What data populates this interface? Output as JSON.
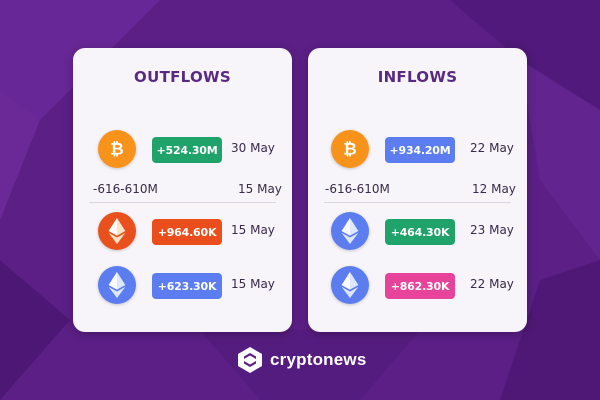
{
  "outflows": {
    "title": "OUTFLOWS",
    "rows": [
      {
        "coin": "btc",
        "icon": "bitcoin-icon",
        "amount": "+524.30M",
        "date": "30 May",
        "color": "#1fa36a"
      },
      {
        "plain": true,
        "amount": "-616-610M",
        "date": "15 May"
      },
      {
        "coin": "eth-orange",
        "icon": "ethereum-icon",
        "amount": "+964.60K",
        "date": "15 May",
        "color": "#ea4e1c"
      },
      {
        "coin": "eth-blue",
        "icon": "ethereum-icon",
        "amount": "+623.30K",
        "date": "15 May",
        "color": "#5b7df0"
      }
    ]
  },
  "inflows": {
    "title": "INFLOWS",
    "rows": [
      {
        "coin": "btc",
        "icon": "bitcoin-icon",
        "amount": "+934.20M",
        "date": "22 May",
        "color": "#5b7df0"
      },
      {
        "plain": true,
        "amount": "-616-610M",
        "date": "12 May"
      },
      {
        "coin": "eth-blue",
        "icon": "ethereum-icon",
        "amount": "+464.30K",
        "date": "23 May",
        "color": "#1fa36a"
      },
      {
        "coin": "eth-blue",
        "icon": "ethereum-icon",
        "amount": "+862.30K",
        "date": "22 May",
        "color": "#e8439a"
      }
    ]
  },
  "brand": {
    "name": "cryptonews",
    "logo_icon": "cryptonews-logo-icon"
  },
  "colors": {
    "background": "#5b1f86",
    "card": "#f7f5fa",
    "title": "#5a2a82"
  }
}
